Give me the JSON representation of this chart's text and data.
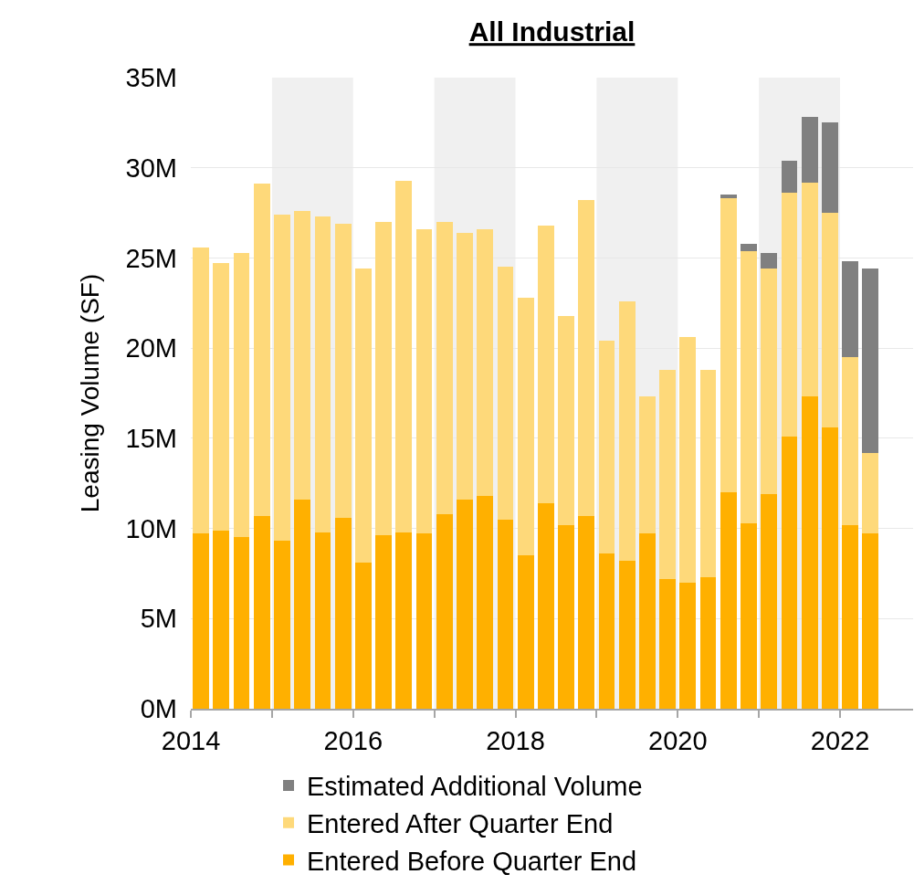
{
  "chart_data": {
    "type": "bar",
    "title": "All Industrial",
    "ylabel": "Leasing Volume (SF)",
    "stacked": true,
    "x": [
      2014.125,
      2014.375,
      2014.625,
      2014.875,
      2015.125,
      2015.375,
      2015.625,
      2015.875,
      2016.125,
      2016.375,
      2016.625,
      2016.875,
      2017.125,
      2017.375,
      2017.625,
      2017.875,
      2018.125,
      2018.375,
      2018.625,
      2018.875,
      2019.125,
      2019.375,
      2019.625,
      2019.875,
      2020.125,
      2020.375,
      2020.625,
      2020.875,
      2021.125,
      2021.375,
      2021.625,
      2021.875,
      2022.125,
      2022.375
    ],
    "series": [
      {
        "name": "Entered Before Quarter End",
        "color": "#ffb000",
        "values": [
          9.7,
          9.9,
          9.5,
          10.7,
          9.3,
          11.6,
          9.8,
          10.6,
          8.1,
          9.6,
          9.8,
          9.7,
          10.8,
          11.6,
          11.8,
          10.5,
          8.5,
          11.4,
          10.2,
          10.7,
          8.6,
          8.2,
          9.7,
          7.2,
          7.0,
          7.3,
          12.0,
          10.3,
          11.9,
          15.1,
          17.3,
          15.6,
          10.2,
          9.7
        ]
      },
      {
        "name": "Entered After Quarter End",
        "color": "#fed97a",
        "values": [
          15.9,
          14.8,
          15.8,
          18.4,
          18.1,
          16.0,
          17.5,
          16.3,
          16.3,
          17.4,
          19.5,
          16.9,
          16.2,
          14.8,
          14.8,
          14.0,
          14.3,
          15.4,
          11.6,
          17.5,
          11.8,
          14.4,
          7.6,
          11.6,
          13.6,
          11.5,
          16.3,
          15.1,
          12.5,
          13.5,
          11.9,
          11.9,
          9.3,
          4.5
        ]
      },
      {
        "name": "Estimated Additional Volume",
        "color": "#808080",
        "values": [
          null,
          null,
          null,
          null,
          null,
          null,
          null,
          null,
          null,
          null,
          null,
          null,
          null,
          null,
          null,
          null,
          null,
          null,
          null,
          null,
          null,
          null,
          null,
          null,
          null,
          null,
          0.2,
          0.4,
          0.9,
          1.8,
          3.6,
          5.0,
          5.3,
          10.2
        ]
      }
    ],
    "xlim": [
      2014,
      2022.9
    ],
    "xticks": [
      2014,
      {
        "value": 2015,
        "label": null
      },
      2016,
      {
        "value": 2017,
        "label": null
      },
      2018,
      {
        "value": 2019,
        "label": null
      },
      2020,
      {
        "value": 2021,
        "label": null
      },
      2022
    ],
    "ylim": [
      0,
      35
    ],
    "yticks": [
      {
        "value": 0,
        "label": "0M"
      },
      {
        "value": 5,
        "label": "5M"
      },
      {
        "value": 10,
        "label": "10M"
      },
      {
        "value": 15,
        "label": "15M"
      },
      {
        "value": 20,
        "label": "20M"
      },
      {
        "value": 25,
        "label": "25M"
      },
      {
        "value": 30,
        "label": "30M"
      },
      {
        "value": 35,
        "label": "35M"
      }
    ],
    "bands": [
      {
        "axis": "x",
        "from": 2015,
        "to": 2016,
        "color": "#f0f0f0"
      },
      {
        "axis": "x",
        "from": 2017,
        "to": 2018,
        "color": "#f0f0f0"
      },
      {
        "axis": "x",
        "from": 2019,
        "to": 2020,
        "color": "#f0f0f0"
      },
      {
        "axis": "x",
        "from": 2021,
        "to": 2022,
        "color": "#f0f0f0"
      }
    ],
    "grid": "y",
    "legend": "bottom"
  }
}
